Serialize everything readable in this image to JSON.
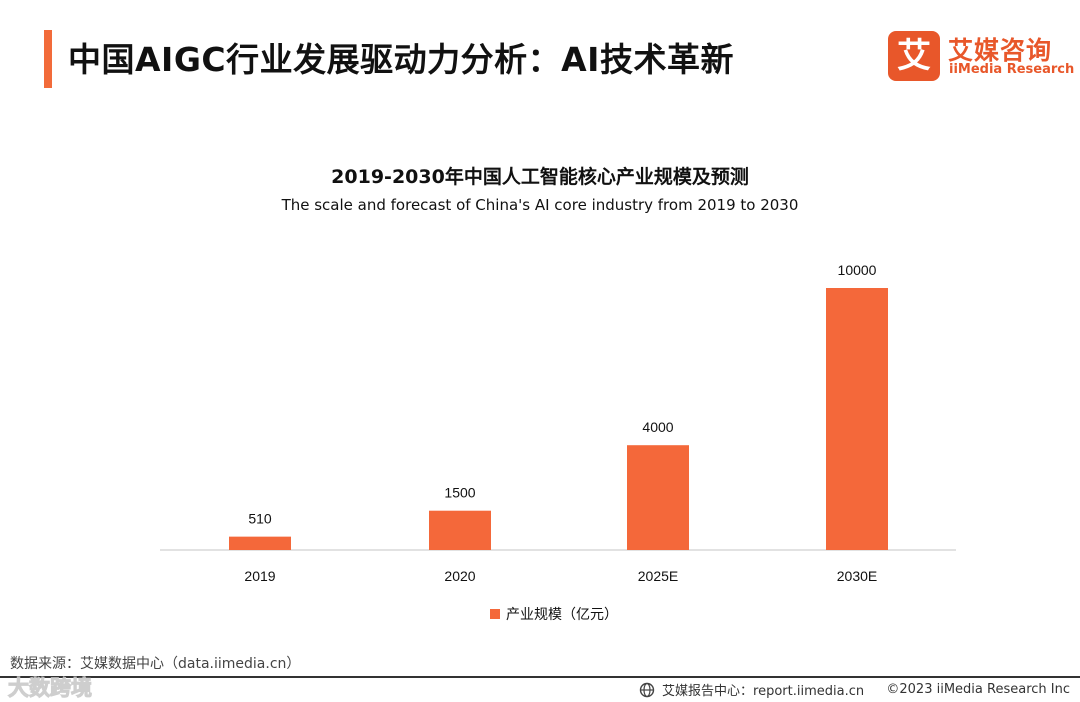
{
  "header": {
    "title": "中国AIGC行业发展驱动力分析：AI技术革新",
    "brand": {
      "mark": "艾",
      "name_cn": "艾媒咨询",
      "name_en": "iiMedia Research"
    }
  },
  "chart_data": {
    "type": "bar",
    "title": "2019-2030年中国人工智能核心产业规模及预测",
    "subtitle": "The scale and forecast of China's AI core industry from 2019 to 2030",
    "categories": [
      "2019",
      "2020",
      "2025E",
      "2030E"
    ],
    "series": [
      {
        "name": "产业规模（亿元）",
        "values": [
          510,
          1500,
          4000,
          10000
        ]
      }
    ],
    "data_labels": [
      "510",
      "1500",
      "4000",
      "10000"
    ],
    "ylim": [
      0,
      10000
    ],
    "xlabel": "",
    "ylabel": "",
    "grid": false,
    "legend_position": "bottom-center",
    "color": "#f4683a"
  },
  "footer": {
    "source": "数据来源：艾媒数据中心（data.iimedia.cn）",
    "watermark": "大数跨境",
    "report_center": "艾媒报告中心：report.iimedia.cn",
    "copyright": "©2023  iiMedia Research  Inc"
  }
}
